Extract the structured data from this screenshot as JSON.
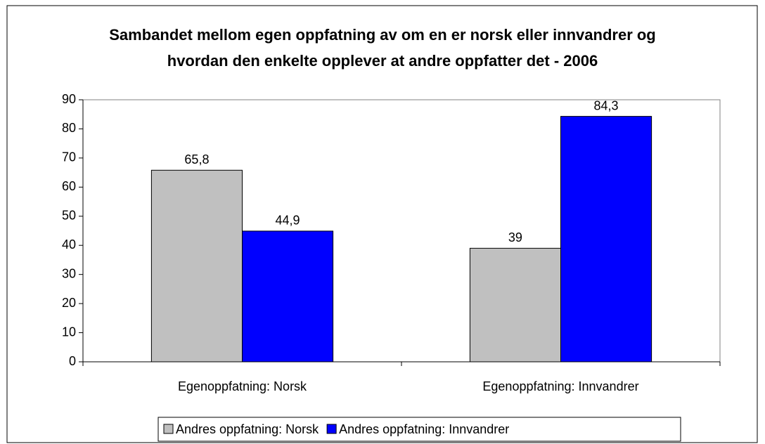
{
  "chart_data": {
    "type": "bar",
    "title": [
      "Sambandet mellom egen oppfatning av om en er norsk eller innvandrer og",
      "hvordan den enkelte opplever at andre oppfatter det - 2006"
    ],
    "categories": [
      "Egenoppfatning: Norsk",
      "Egenoppfatning: Innvandrer"
    ],
    "series": [
      {
        "name": "Andres oppfatning: Norsk",
        "color": "#c0c0c0",
        "values": [
          65.8,
          39
        ],
        "value_labels": [
          "65,8",
          "39"
        ]
      },
      {
        "name": "Andres oppfatning: Innvandrer",
        "color": "#0000ff",
        "values": [
          44.9,
          84.3
        ],
        "value_labels": [
          "44,9",
          "84,3"
        ]
      }
    ],
    "ylim": [
      0,
      90
    ],
    "yticks": [
      0,
      10,
      20,
      30,
      40,
      50,
      60,
      70,
      80,
      90
    ],
    "grid": false,
    "legend": "bottom"
  }
}
